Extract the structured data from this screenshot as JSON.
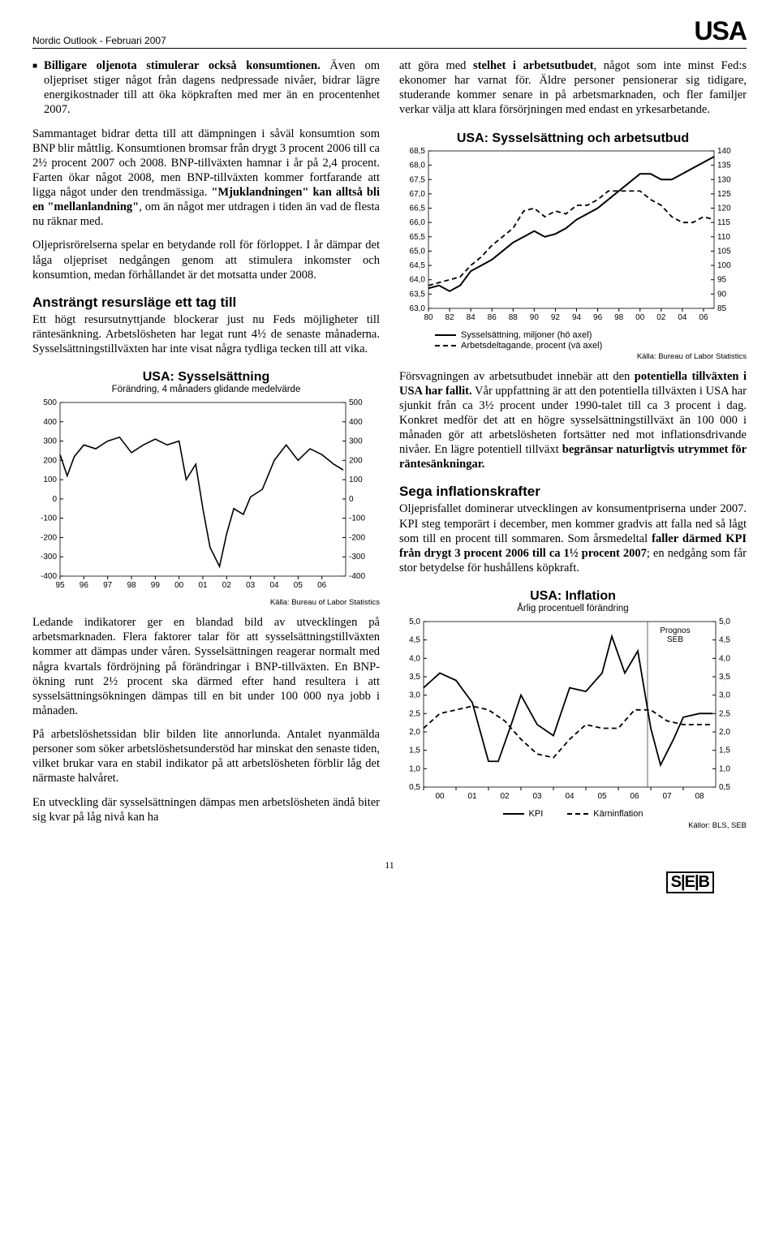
{
  "header": {
    "sub": "Nordic Outlook - Februari 2007",
    "title": "USA"
  },
  "left": {
    "bullet_lead": "Billigare oljenota stimulerar också konsumtionen.",
    "bullet_rest": " Även om oljepriset stiger något från dagens ned­pressade nivåer, bidrar lägre energikostnader till att öka köpkraften med mer än en procentenhet 2007.",
    "p2a": "Sammantaget bidrar detta till att dämpningen i såväl konsumtion som BNP blir måttlig. Konsumtionen bromsar från drygt 3 procent 2006 till ca 2½ procent 2007 och 2008. BNP-tillväxten hamnar i år på 2,4 procent. Farten ökar något 2008, men BNP-tillväxten kommer fortfarande att ligga något under den trend­mässiga. ",
    "p2b": "Mjuklandningen\" kan alltså bli en \"mellanlandning\"",
    "p2c": ", om än något mer utdragen i tiden än vad de flesta nu räknar med.",
    "p3": "Oljeprisrörelserna spelar en betydande roll för förlop­pet. I år dämpar det låga oljepriset nedgången genom att stimulera inkomster och konsumtion, medan förhållandet är det motsatta under 2008.",
    "h_resource": "Ansträngt resursläge ett tag till",
    "p_resource": "Ett högt resursutnyttjande blockerar just nu Feds möjligheter till räntesänkning. Arbetslösheten har legat runt 4½ de senaste månaderna. Sysselsättningstillväx­ten har inte visat några tydliga tecken till att vika.",
    "p_afterchart": "Ledande indikatorer ger en blandad bild av utveckling­en på arbetsmarknaden. Flera faktorer talar för att sysselsättningstillväxten kommer att dämpas under våren. Sysselsättningen reagerar normalt med några kvartals fördröjning på förändringar i BNP-tillväxten. En BNP-ökning runt 2½ procent ska därmed efter hand resultera i att sysselsättningsökningen dämpas till en bit under 100 000 nya jobb i månaden.",
    "p_unemp": "På arbetslöshetssidan blir bilden lite annorlunda. Antalet nyanmälda personer som söker arbetslöshets­understöd har minskat den senaste tiden, vilket brukar vara en stabil indikator på att arbetslösheten förblir låg det närmaste halvåret.",
    "p_last": "En utveckling där sysselsättningen dämpas men arbetslösheten ändå biter sig kvar på låg nivå kan ha"
  },
  "right": {
    "p1a": "att göra med ",
    "p1b": "stelhet i arbetsutbudet",
    "p1c": ", något som inte minst Fed:s ekonomer har varnat för. Äldre personer pensionerar sig tidigare, studerande kommer senare in på arbetsmarknaden, och fler familjer verkar välja att klara försörjningen med endast en yrkesarbetande.",
    "p2a": "Försvagningen av arbetsutbudet innebär att den ",
    "p2b": "potentiella tillväxten i USA har fallit.",
    "p2c": " Vår uppfatt­ning är att den potentiella tillväxten i USA har sjunkit från ca 3½ procent under 1990-talet till ca 3 procent i dag. Konkret medför det att en högre sysselsätt­ningstillväxt än 100 000 i månaden gör att arbetslös­heten fortsätter ned mot inflationsdrivande nivåer. En lägre potentiell tillväxt ",
    "p2d": "begränsar naturligtvis ut­rymmet för räntesänkningar.",
    "h_infl": "Sega inflationskrafter",
    "p_infl_a": "Oljeprisfallet dominerar utvecklingen av konsument­priserna under 2007. KPI steg temporärt i december, men kommer gradvis att falla ned så lågt som till en procent till sommaren. Som årsmedeltal ",
    "p_infl_b": "faller där­med KPI från drygt 3 procent 2006 till ca 1½ procent 2007",
    "p_infl_c": "; en nedgång som får stor betydelse för hushållens köpkraft."
  },
  "chart_employ": {
    "title": "USA: Sysselsättning",
    "sub": "Förändring, 4 månaders glidande medelvärde",
    "source": "Källa: Bureau of Labor Statistics",
    "y_ticks": [
      500,
      400,
      300,
      200,
      100,
      0,
      -100,
      -200,
      -300,
      -400
    ],
    "x_ticks": [
      "95",
      "96",
      "97",
      "98",
      "99",
      "00",
      "01",
      "02",
      "03",
      "04",
      "05",
      "06"
    ],
    "ylim": [
      -400,
      500
    ],
    "series": [
      {
        "type": "line",
        "style": "solid",
        "color": "#000000",
        "width": 1.6,
        "x": [
          1995.0,
          1995.3,
          1995.6,
          1996.0,
          1996.5,
          1997.0,
          1997.5,
          1998.0,
          1998.5,
          1999.0,
          1999.5,
          2000.0,
          2000.3,
          2000.7,
          2001.0,
          2001.3,
          2001.7,
          2002.0,
          2002.3,
          2002.7,
          2003.0,
          2003.5,
          2004.0,
          2004.5,
          2005.0,
          2005.5,
          2006.0,
          2006.5,
          2006.9
        ],
        "y": [
          230,
          120,
          220,
          280,
          260,
          300,
          320,
          240,
          280,
          310,
          280,
          300,
          100,
          180,
          -50,
          -250,
          -350,
          -180,
          -50,
          -80,
          10,
          50,
          200,
          280,
          200,
          260,
          230,
          180,
          150
        ]
      }
    ]
  },
  "chart_labor": {
    "title": "USA: Sysselsättning och arbetsutbud",
    "source": "Källa: Bureau of Labor Statistics",
    "legend": [
      {
        "label": "Sysselsättning, miljoner (hö axel)",
        "style": "solid"
      },
      {
        "label": "Arbetsdeltagande, procent (vä axel)",
        "style": "dashed"
      }
    ],
    "y_left_ticks": [
      68.5,
      68.0,
      67.5,
      67.0,
      66.5,
      66.0,
      65.5,
      65.0,
      64.5,
      64.0,
      63.5,
      63.0
    ],
    "y_right_ticks": [
      140,
      135,
      130,
      125,
      120,
      115,
      110,
      105,
      100,
      95,
      90,
      85
    ],
    "x_ticks": [
      "80",
      "82",
      "84",
      "86",
      "88",
      "90",
      "92",
      "94",
      "96",
      "98",
      "00",
      "02",
      "04",
      "06"
    ],
    "ylim_left": [
      63.0,
      68.5
    ],
    "ylim_right": [
      85,
      140
    ],
    "series": [
      {
        "axis": "right",
        "style": "solid",
        "color": "#000000",
        "width": 2.0,
        "x": [
          1980,
          1981,
          1982,
          1983,
          1984,
          1985,
          1986,
          1987,
          1988,
          1989,
          1990,
          1991,
          1992,
          1993,
          1994,
          1995,
          1996,
          1997,
          1998,
          1999,
          2000,
          2001,
          2002,
          2003,
          2004,
          2005,
          2006,
          2007
        ],
        "y": [
          92,
          93,
          91,
          93,
          98,
          100,
          102,
          105,
          108,
          110,
          112,
          110,
          111,
          113,
          116,
          118,
          120,
          123,
          126,
          129,
          132,
          132,
          130,
          130,
          132,
          134,
          136,
          138
        ]
      },
      {
        "axis": "left",
        "style": "dashed",
        "color": "#000000",
        "width": 1.8,
        "x": [
          1980,
          1981,
          1982,
          1983,
          1984,
          1985,
          1986,
          1987,
          1988,
          1989,
          1990,
          1991,
          1992,
          1993,
          1994,
          1995,
          1996,
          1997,
          1998,
          1999,
          2000,
          2001,
          2002,
          2003,
          2004,
          2005,
          2006,
          2007
        ],
        "y": [
          63.8,
          63.9,
          64.0,
          64.1,
          64.5,
          64.8,
          65.2,
          65.5,
          65.8,
          66.4,
          66.5,
          66.2,
          66.4,
          66.3,
          66.6,
          66.6,
          66.8,
          67.1,
          67.1,
          67.1,
          67.1,
          66.8,
          66.6,
          66.2,
          66.0,
          66.0,
          66.2,
          66.1
        ]
      }
    ]
  },
  "chart_infl": {
    "title": "USA: Inflation",
    "sub": "Årlig procentuell förändring",
    "source": "Källor: BLS, SEB",
    "prognos": "Prognos\nSEB",
    "legend": [
      {
        "label": "KPI",
        "style": "solid"
      },
      {
        "label": "Kärninflation",
        "style": "dashed"
      }
    ],
    "y_ticks": [
      5.0,
      4.5,
      4.0,
      3.5,
      3.0,
      2.5,
      2.0,
      1.5,
      1.0,
      0.5
    ],
    "x_ticks": [
      "00",
      "01",
      "02",
      "03",
      "04",
      "05",
      "06",
      "07",
      "08"
    ],
    "ylim": [
      0.5,
      5.0
    ],
    "forecast_x": 2006.9,
    "series": [
      {
        "style": "solid",
        "color": "#000000",
        "width": 1.8,
        "x": [
          2000.0,
          2000.5,
          2001.0,
          2001.5,
          2002.0,
          2002.3,
          2002.7,
          2003.0,
          2003.5,
          2004.0,
          2004.5,
          2005.0,
          2005.5,
          2005.8,
          2006.2,
          2006.6,
          2007.0,
          2007.3,
          2007.7,
          2008.0,
          2008.5,
          2008.9
        ],
        "y": [
          3.2,
          3.6,
          3.4,
          2.8,
          1.2,
          1.2,
          2.2,
          3.0,
          2.2,
          1.9,
          3.2,
          3.1,
          3.6,
          4.6,
          3.6,
          4.2,
          2.1,
          1.1,
          1.8,
          2.4,
          2.5,
          2.5
        ]
      },
      {
        "style": "dashed",
        "color": "#000000",
        "width": 1.8,
        "x": [
          2000.0,
          2000.5,
          2001.0,
          2001.5,
          2002.0,
          2002.5,
          2003.0,
          2003.5,
          2004.0,
          2004.5,
          2005.0,
          2005.5,
          2006.0,
          2006.5,
          2007.0,
          2007.5,
          2008.0,
          2008.5,
          2008.9
        ],
        "y": [
          2.1,
          2.5,
          2.6,
          2.7,
          2.6,
          2.3,
          1.8,
          1.4,
          1.3,
          1.8,
          2.2,
          2.1,
          2.1,
          2.6,
          2.6,
          2.3,
          2.2,
          2.2,
          2.2
        ]
      }
    ]
  },
  "footer": {
    "page": "11",
    "logo": "SEB"
  }
}
